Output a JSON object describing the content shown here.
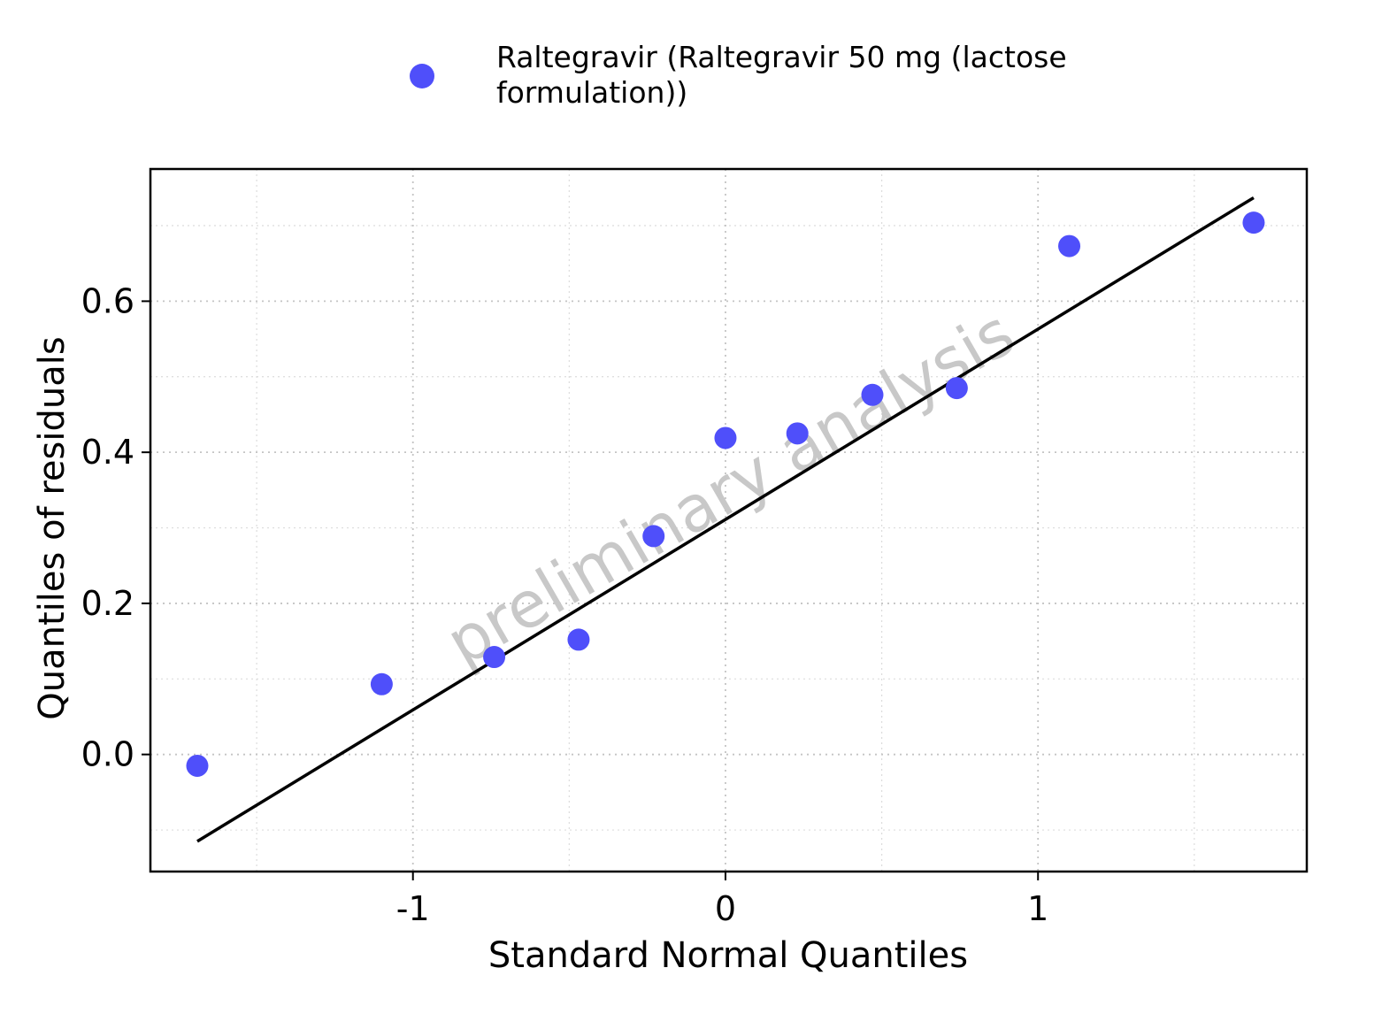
{
  "chart_data": {
    "type": "scatter",
    "xlabel": "Standard Normal Quantiles",
    "ylabel": "Quantiles of residuals",
    "xlim": [
      -1.84,
      1.86
    ],
    "ylim": [
      -0.155,
      0.775
    ],
    "x_ticks": [
      -1,
      0,
      1
    ],
    "x_tick_labels": [
      "-1",
      "0",
      "1"
    ],
    "y_ticks": [
      0.0,
      0.2,
      0.4,
      0.6
    ],
    "y_tick_labels": [
      "0.0",
      "0.2",
      "0.4",
      "0.6"
    ],
    "grid": true,
    "legend": {
      "placement": "top-center",
      "entries": [
        {
          "line1": "Raltegravir (Raltegravir 50 mg (lactose",
          "line2": "formulation))",
          "color": "#4F4FFA"
        }
      ]
    },
    "series": [
      {
        "color": "#4F4FFA",
        "points": [
          {
            "x": -1.69,
            "y": -0.015
          },
          {
            "x": -1.1,
            "y": 0.093
          },
          {
            "x": -0.74,
            "y": 0.129
          },
          {
            "x": -0.47,
            "y": 0.152
          },
          {
            "x": -0.23,
            "y": 0.289
          },
          {
            "x": 0.0,
            "y": 0.419
          },
          {
            "x": 0.23,
            "y": 0.425
          },
          {
            "x": 0.47,
            "y": 0.476
          },
          {
            "x": 0.74,
            "y": 0.485
          },
          {
            "x": 1.1,
            "y": 0.673
          },
          {
            "x": 1.69,
            "y": 0.704
          }
        ]
      }
    ],
    "reference_line": {
      "x1": -1.69,
      "y1": -0.115,
      "x2": 1.69,
      "y2": 0.737,
      "color": "#000000"
    },
    "watermark": "preliminary analysis"
  }
}
